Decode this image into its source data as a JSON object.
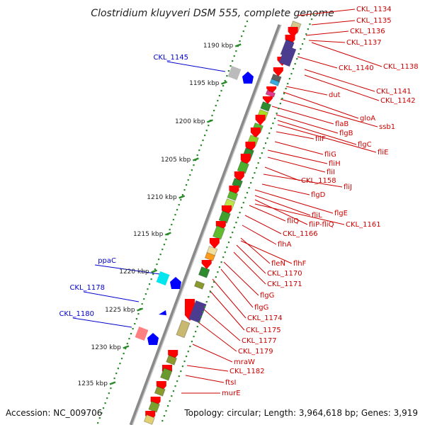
{
  "title": "Clostridium kluyveri DSM 555, complete genome",
  "footer": {
    "accession": "Accession: NC_009706",
    "info": "Topology: circular; Length: 3,964,618 bp; Genes: 3,919"
  },
  "colors": {
    "backbone": "#8a8a8a",
    "forward_label": "#cc0000",
    "reverse_label": "#0000cc",
    "scale": "#2a8a2a"
  },
  "ruler": [
    {
      "label": "1190 kbp"
    },
    {
      "label": "1195 kbp"
    },
    {
      "label": "1200 kbp"
    },
    {
      "label": "1205 kbp"
    },
    {
      "label": "1210 kbp"
    },
    {
      "label": "1215 kbp"
    },
    {
      "label": "1220 kbp"
    },
    {
      "label": "1225 kbp"
    },
    {
      "label": "1230 kbp"
    },
    {
      "label": "1235 kbp"
    }
  ],
  "right_labels": [
    {
      "text": "CKL_1134"
    },
    {
      "text": "CKL_1135"
    },
    {
      "text": "CKL_1136"
    },
    {
      "text": "CKL_1137"
    },
    {
      "text": "CKL_1138"
    },
    {
      "text": "CKL_1140"
    },
    {
      "text": "CKL_1141"
    },
    {
      "text": "CKL_1142"
    },
    {
      "text": "dut"
    },
    {
      "text": "gloA"
    },
    {
      "text": "ssb1"
    },
    {
      "text": "flaB"
    },
    {
      "text": "flgB"
    },
    {
      "text": "flgC"
    },
    {
      "text": "fliE"
    },
    {
      "text": "fliF"
    },
    {
      "text": "fliG"
    },
    {
      "text": "fliH"
    },
    {
      "text": "fliI"
    },
    {
      "text": "CKL_1158"
    },
    {
      "text": "fliJ"
    },
    {
      "text": "flgD"
    },
    {
      "text": "flgE"
    },
    {
      "text": "fliL"
    },
    {
      "text": "fliP-fliQ"
    },
    {
      "text": "CKL_1161"
    },
    {
      "text": "fliQ"
    },
    {
      "text": "CKL_1166"
    },
    {
      "text": "flhA"
    },
    {
      "text": "fleN"
    },
    {
      "text": "flhF"
    },
    {
      "text": "CKL_1170"
    },
    {
      "text": "CKL_1171"
    },
    {
      "text": "flgG"
    },
    {
      "text": "flgG"
    },
    {
      "text": "CKL_1174"
    },
    {
      "text": "CKL_1175"
    },
    {
      "text": "CKL_1177"
    },
    {
      "text": "CKL_1179"
    },
    {
      "text": "mraW"
    },
    {
      "text": "CKL_1182"
    },
    {
      "text": "ftsI"
    },
    {
      "text": "murE"
    }
  ],
  "left_labels": [
    {
      "text": "CKL_1145"
    },
    {
      "text": "ppaC"
    },
    {
      "text": "CKL_1178"
    },
    {
      "text": "CKL_1180"
    }
  ]
}
